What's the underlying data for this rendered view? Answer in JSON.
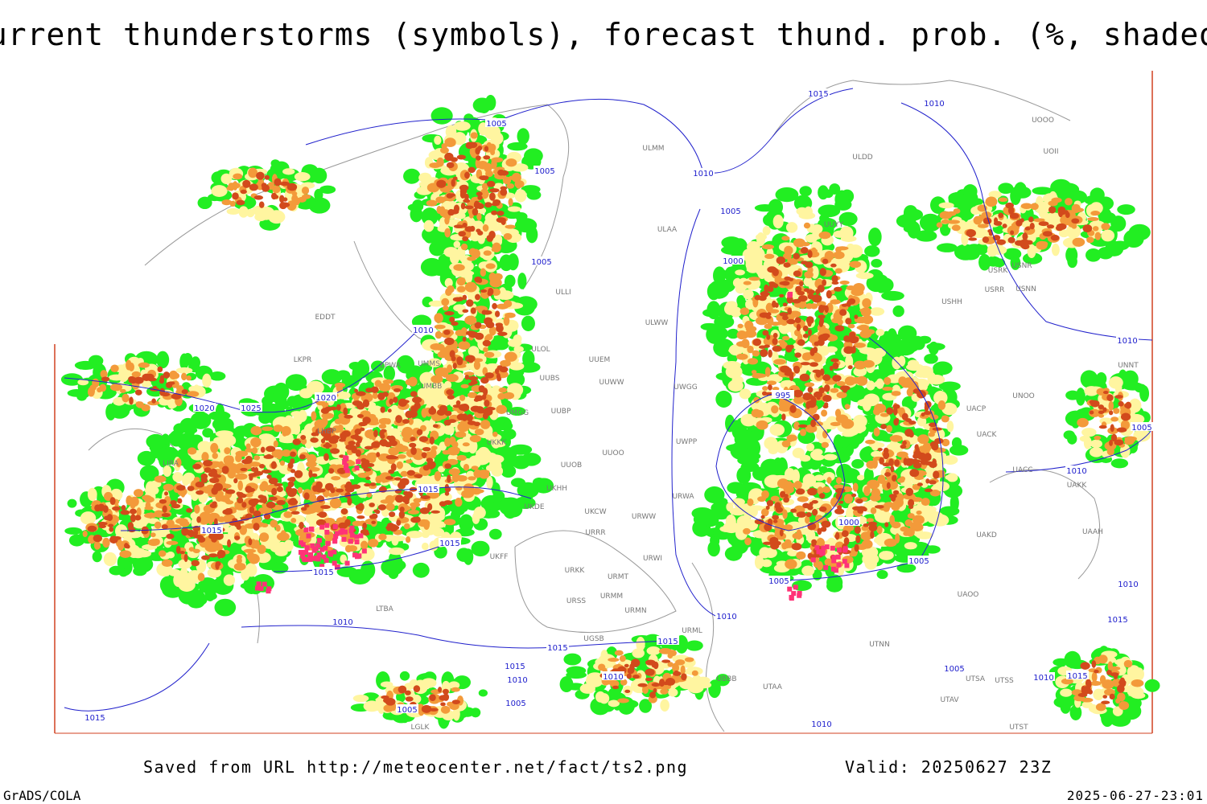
{
  "title": "Current thunderstorms (symbols), forecast thund. prob. (%, shaded)",
  "footer": {
    "saved": "Saved from URL http://meteocenter.net/fact/ts2.png",
    "valid": "Valid: 20250627 23Z",
    "credit": "GrADS/COLA",
    "timestamp": "2025-06-27-23:01"
  },
  "isobar_labels": [
    "1005",
    "1005",
    "1015",
    "1010",
    "1010",
    "1005",
    "1000",
    "1005",
    "1010",
    "1020",
    "1020",
    "1025",
    "995",
    "1015",
    "1015",
    "1015",
    "1015",
    "1000",
    "1005",
    "1005",
    "1010",
    "1005",
    "1010",
    "1010",
    "1015",
    "1010",
    "1010",
    "1015",
    "1015",
    "1015",
    "1010",
    "1010",
    "1005",
    "1005",
    "1005",
    "1015",
    "1010",
    "1015",
    "1010"
  ],
  "stations": [
    "ULDD",
    "UOII",
    "UOOO",
    "ULMM",
    "ULAA",
    "UUYY",
    "USNR",
    "USRK",
    "USRR",
    "USNN",
    "USHH",
    "ULLI",
    "ULWW",
    "EDDT",
    "ULOL",
    "UUEM",
    "EPWA",
    "UMMS",
    "LKPR",
    "UMBB",
    "UUWW",
    "UUBS",
    "UWGG",
    "UNNT",
    "UNOO",
    "UACP",
    "UMGG",
    "UUBP",
    "LHBP",
    "UACK",
    "UWPP",
    "UKKK",
    "UUOO",
    "LIRA",
    "UUOB",
    "UACC",
    "UKHH",
    "UAKK",
    "UKDE",
    "URWA",
    "UKCW",
    "URWW",
    "URRR",
    "UAAH",
    "UAKD",
    "UKFF",
    "URWI",
    "URKK",
    "URMT",
    "UAOO",
    "URSS",
    "URMM",
    "URMN",
    "UGSB",
    "URML",
    "UBBB",
    "UTAA",
    "UTNN",
    "UTSS",
    "UTSA",
    "UTAV",
    "LTBA",
    "LGLK",
    "UTST"
  ]
}
